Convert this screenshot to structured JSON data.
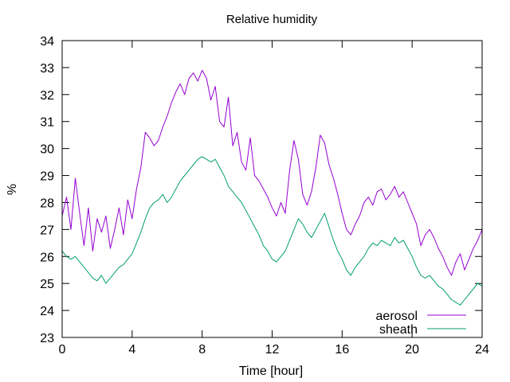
{
  "chart_data": {
    "type": "line",
    "title": "Relative humidity",
    "xlabel": "Time [hour]",
    "ylabel": "%",
    "xlim": [
      0,
      24
    ],
    "ylim": [
      23,
      34
    ],
    "xticks": [
      0,
      4,
      8,
      12,
      16,
      20,
      24
    ],
    "yticks": [
      23,
      24,
      25,
      26,
      27,
      28,
      29,
      30,
      31,
      32,
      33,
      34
    ],
    "grid": false,
    "legend": "bottom-right",
    "series": [
      {
        "name": "aerosol",
        "color": "#9400d3",
        "x": [
          0,
          0.25,
          0.5,
          0.75,
          1,
          1.25,
          1.5,
          1.75,
          2,
          2.25,
          2.5,
          2.75,
          3,
          3.25,
          3.5,
          3.75,
          4,
          4.25,
          4.5,
          4.75,
          5,
          5.25,
          5.5,
          5.75,
          6,
          6.25,
          6.5,
          6.75,
          7,
          7.25,
          7.5,
          7.75,
          8,
          8.25,
          8.5,
          8.75,
          9,
          9.25,
          9.5,
          9.75,
          10,
          10.25,
          10.5,
          10.75,
          11,
          11.25,
          11.5,
          11.75,
          12,
          12.25,
          12.5,
          12.75,
          13,
          13.25,
          13.5,
          13.75,
          14,
          14.25,
          14.5,
          14.75,
          15,
          15.25,
          15.5,
          15.75,
          16,
          16.25,
          16.5,
          16.75,
          17,
          17.25,
          17.5,
          17.75,
          18,
          18.25,
          18.5,
          18.75,
          19,
          19.25,
          19.5,
          19.75,
          20,
          20.25,
          20.5,
          20.75,
          21,
          21.25,
          21.5,
          21.75,
          22,
          22.25,
          22.5,
          22.75,
          23,
          23.25,
          23.5,
          23.75,
          24
        ],
        "y": [
          27.5,
          28.2,
          27.0,
          28.9,
          27.6,
          26.4,
          27.8,
          26.2,
          27.4,
          26.9,
          27.5,
          26.3,
          27.0,
          27.8,
          26.8,
          28.1,
          27.4,
          28.5,
          29.3,
          30.6,
          30.4,
          30.1,
          30.3,
          30.8,
          31.2,
          31.7,
          32.1,
          32.4,
          32.0,
          32.6,
          32.8,
          32.5,
          32.9,
          32.6,
          31.8,
          32.3,
          31.0,
          30.8,
          31.9,
          30.1,
          30.6,
          29.5,
          29.2,
          30.4,
          29.0,
          28.8,
          28.5,
          28.2,
          27.8,
          27.5,
          28.0,
          27.6,
          29.2,
          30.3,
          29.6,
          28.3,
          27.9,
          28.4,
          29.3,
          30.5,
          30.2,
          29.4,
          28.9,
          28.3,
          27.6,
          27.0,
          26.8,
          27.2,
          27.5,
          28.0,
          28.2,
          27.9,
          28.4,
          28.5,
          28.1,
          28.3,
          28.6,
          28.2,
          28.4,
          28.0,
          27.6,
          27.2,
          26.4,
          26.8,
          27.0,
          26.7,
          26.3,
          26.0,
          25.6,
          25.3,
          25.8,
          26.1,
          25.5,
          25.9,
          26.3,
          26.6,
          27.0
        ]
      },
      {
        "name": "sheath",
        "color": "#009e73",
        "x": [
          0,
          0.25,
          0.5,
          0.75,
          1,
          1.25,
          1.5,
          1.75,
          2,
          2.25,
          2.5,
          2.75,
          3,
          3.25,
          3.5,
          3.75,
          4,
          4.25,
          4.5,
          4.75,
          5,
          5.25,
          5.5,
          5.75,
          6,
          6.25,
          6.5,
          6.75,
          7,
          7.25,
          7.5,
          7.75,
          8,
          8.25,
          8.5,
          8.75,
          9,
          9.25,
          9.5,
          9.75,
          10,
          10.25,
          10.5,
          10.75,
          11,
          11.25,
          11.5,
          11.75,
          12,
          12.25,
          12.5,
          12.75,
          13,
          13.25,
          13.5,
          13.75,
          14,
          14.25,
          14.5,
          14.75,
          15,
          15.25,
          15.5,
          15.75,
          16,
          16.25,
          16.5,
          16.75,
          17,
          17.25,
          17.5,
          17.75,
          18,
          18.25,
          18.5,
          18.75,
          19,
          19.25,
          19.5,
          19.75,
          20,
          20.25,
          20.5,
          20.75,
          21,
          21.25,
          21.5,
          21.75,
          22,
          22.25,
          22.5,
          22.75,
          23,
          23.25,
          23.5,
          23.75,
          24
        ],
        "y": [
          26.2,
          26.0,
          25.9,
          26.0,
          25.8,
          25.6,
          25.4,
          25.2,
          25.1,
          25.3,
          25.0,
          25.2,
          25.4,
          25.6,
          25.7,
          25.9,
          26.1,
          26.5,
          26.9,
          27.4,
          27.8,
          28.0,
          28.1,
          28.3,
          28.0,
          28.2,
          28.5,
          28.8,
          29.0,
          29.2,
          29.4,
          29.6,
          29.7,
          29.6,
          29.5,
          29.6,
          29.3,
          29.0,
          28.6,
          28.4,
          28.2,
          28.0,
          27.7,
          27.4,
          27.1,
          26.8,
          26.4,
          26.2,
          25.9,
          25.8,
          26.0,
          26.2,
          26.6,
          27.0,
          27.4,
          27.2,
          26.9,
          26.7,
          27.0,
          27.3,
          27.6,
          27.1,
          26.6,
          26.2,
          25.9,
          25.5,
          25.3,
          25.6,
          25.8,
          26.0,
          26.3,
          26.5,
          26.4,
          26.6,
          26.5,
          26.4,
          26.7,
          26.5,
          26.6,
          26.3,
          26.0,
          25.6,
          25.3,
          25.2,
          25.3,
          25.1,
          24.9,
          24.8,
          24.6,
          24.4,
          24.3,
          24.2,
          24.4,
          24.6,
          24.8,
          25.0,
          24.9
        ]
      }
    ]
  }
}
